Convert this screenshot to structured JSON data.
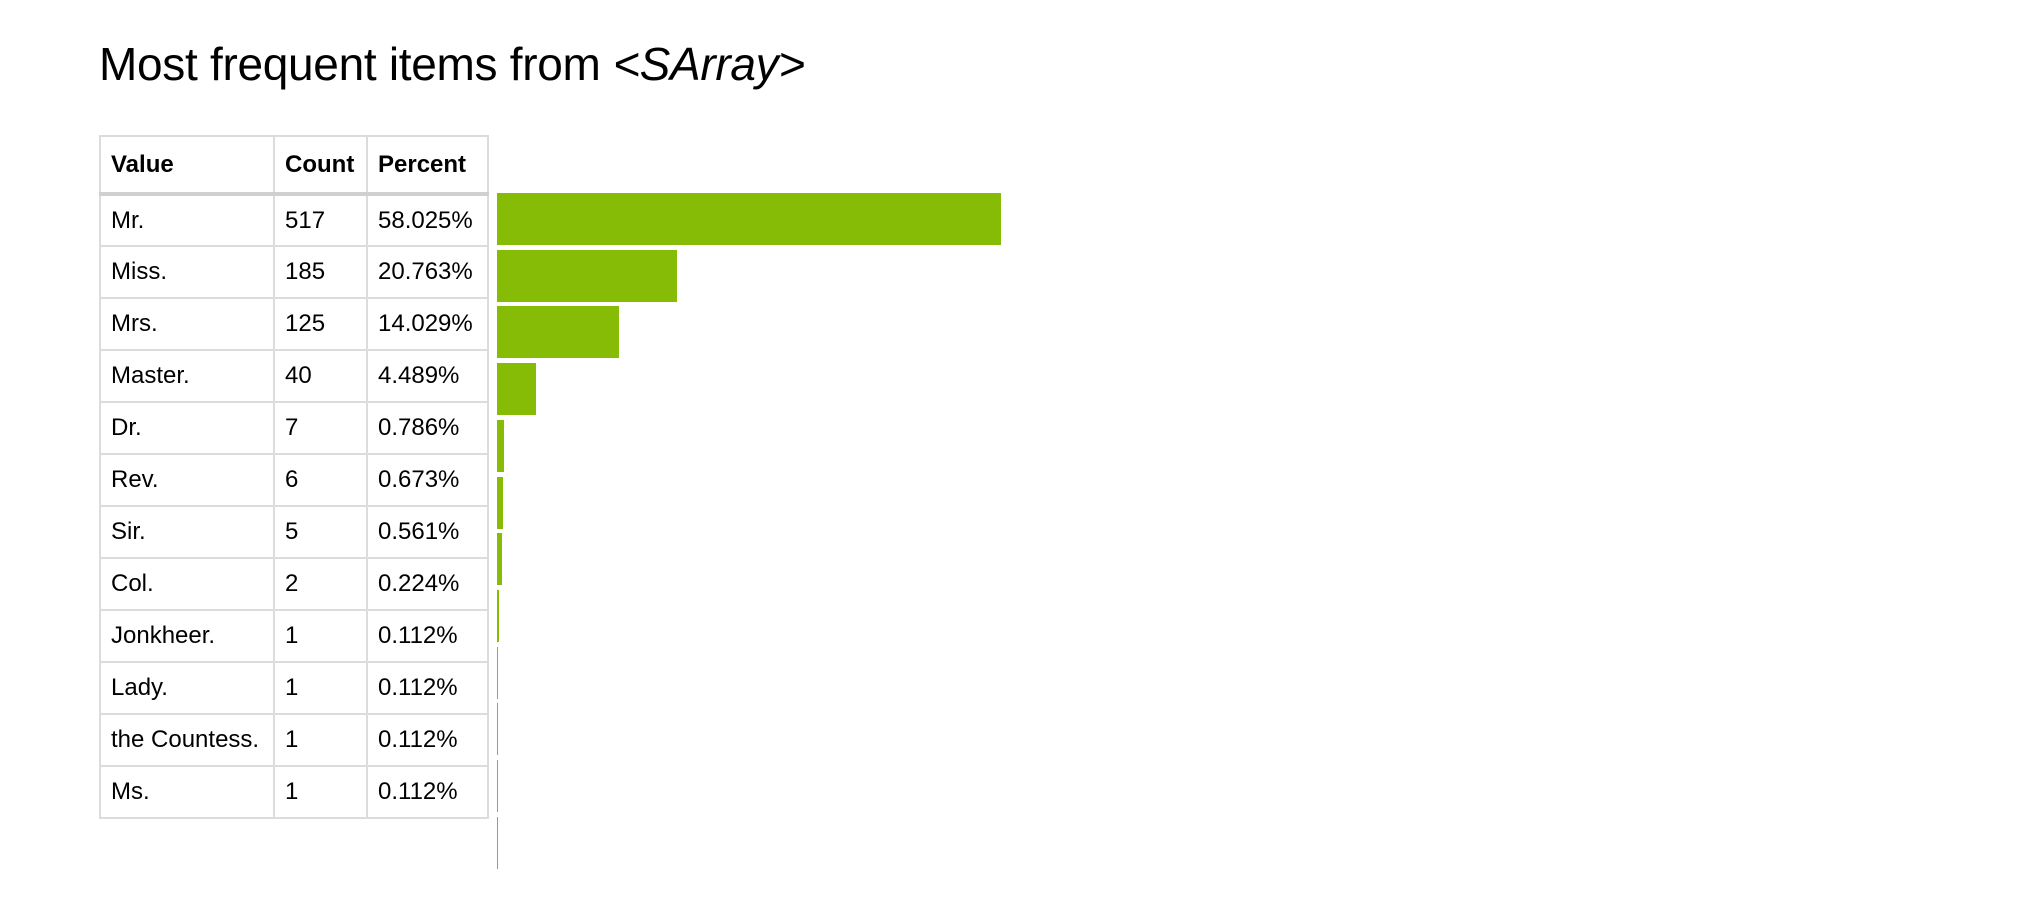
{
  "title": {
    "prefix": "Most frequent items from ",
    "emphasis": "<SArray>"
  },
  "table": {
    "headers": [
      "Value",
      "Count",
      "Percent"
    ],
    "rows": [
      {
        "value": "Mr.",
        "count": "517",
        "percent": "58.025%"
      },
      {
        "value": "Miss.",
        "count": "185",
        "percent": "20.763%"
      },
      {
        "value": "Mrs.",
        "count": "125",
        "percent": "14.029%"
      },
      {
        "value": "Master.",
        "count": "40",
        "percent": "4.489%"
      },
      {
        "value": "Dr.",
        "count": "7",
        "percent": "0.786%"
      },
      {
        "value": "Rev.",
        "count": "6",
        "percent": "0.673%"
      },
      {
        "value": "Sir.",
        "count": "5",
        "percent": "0.561%"
      },
      {
        "value": "Col.",
        "count": "2",
        "percent": "0.224%"
      },
      {
        "value": "Jonkheer.",
        "count": "1",
        "percent": "0.112%"
      },
      {
        "value": "Lady.",
        "count": "1",
        "percent": "0.112%"
      },
      {
        "value": "the Countess.",
        "count": "1",
        "percent": "0.112%"
      },
      {
        "value": "Ms.",
        "count": "1",
        "percent": "0.112%"
      }
    ]
  },
  "chart_data": {
    "type": "bar",
    "orientation": "horizontal",
    "categories": [
      "Mr.",
      "Miss.",
      "Mrs.",
      "Master.",
      "Dr.",
      "Rev.",
      "Sir.",
      "Col.",
      "Jonkheer.",
      "Lady.",
      "the Countess.",
      "Ms."
    ],
    "values": [
      517,
      185,
      125,
      40,
      7,
      6,
      5,
      2,
      1,
      1,
      1,
      1
    ],
    "bar_color": "#86bc05",
    "grid": false,
    "axes": false
  }
}
